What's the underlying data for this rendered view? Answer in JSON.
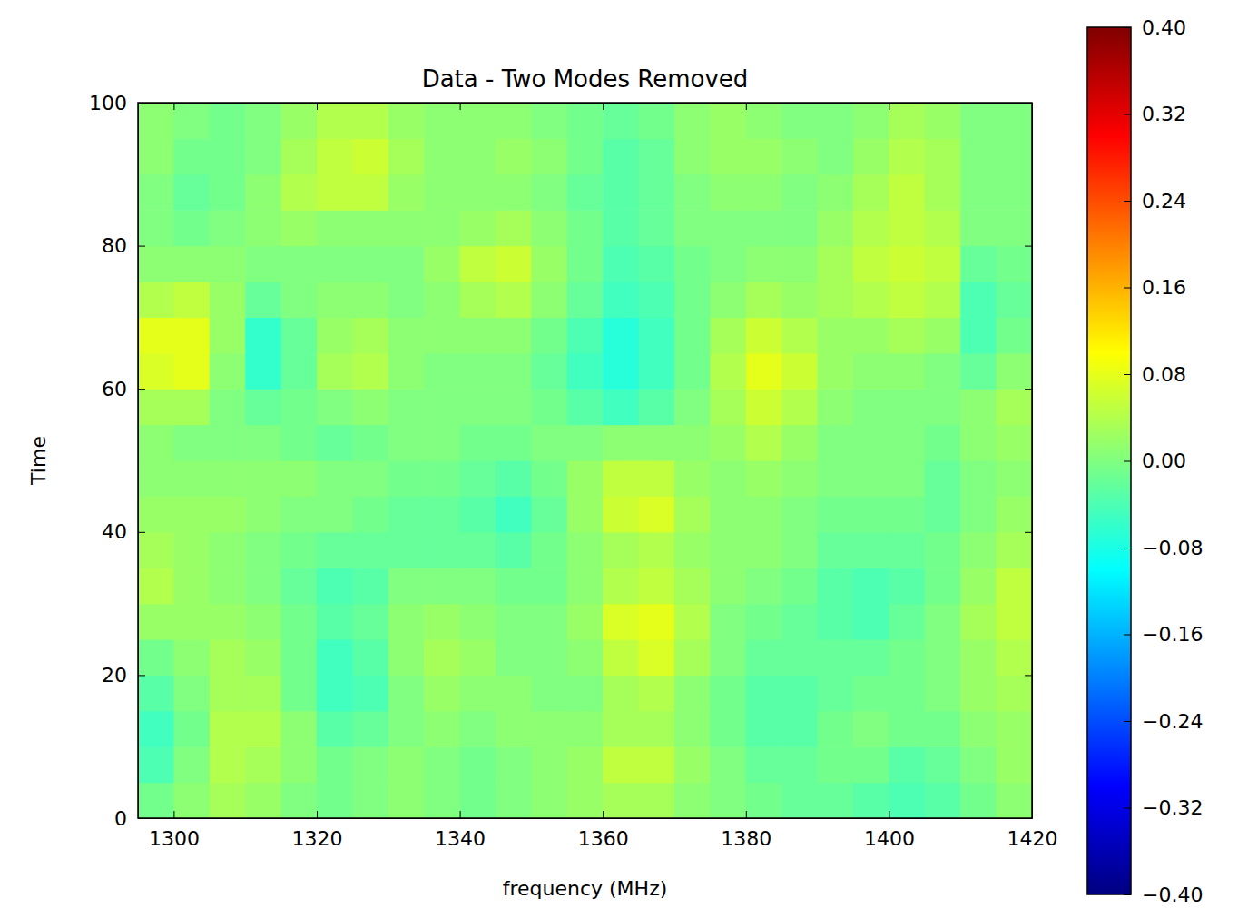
{
  "chart_data": {
    "type": "heatmap",
    "title": "Data - Two Modes Removed",
    "x_label": "frequency (MHz)",
    "y_label": "Time",
    "x": [
      1297.5,
      1302.5,
      1307.5,
      1312.5,
      1317.5,
      1322.5,
      1327.5,
      1332.5,
      1337.5,
      1342.5,
      1347.5,
      1352.5,
      1357.5,
      1362.5,
      1367.5,
      1372.5,
      1377.5,
      1382.5,
      1387.5,
      1392.5,
      1397.5,
      1402.5,
      1407.5,
      1412.5,
      1417.5
    ],
    "y": [
      2.5,
      7.5,
      12.5,
      17.5,
      22.5,
      27.5,
      32.5,
      37.5,
      42.5,
      47.5,
      52.5,
      57.5,
      62.5,
      67.5,
      72.5,
      77.5,
      82.5,
      87.5,
      92.5,
      97.5
    ],
    "z": [
      [
        -0.01,
        0.01,
        0.03,
        0.02,
        0.0,
        -0.01,
        0.0,
        0.01,
        0.0,
        -0.01,
        0.0,
        0.01,
        0.02,
        0.03,
        0.03,
        0.01,
        0.0,
        -0.01,
        -0.02,
        -0.02,
        -0.03,
        -0.04,
        -0.03,
        -0.01,
        0.01
      ],
      [
        -0.04,
        0.0,
        0.04,
        0.03,
        0.01,
        -0.01,
        0.0,
        0.01,
        0.0,
        -0.01,
        0.0,
        0.01,
        0.02,
        0.05,
        0.05,
        0.02,
        0.0,
        -0.02,
        -0.02,
        -0.01,
        -0.01,
        -0.03,
        -0.02,
        0.0,
        0.02
      ],
      [
        -0.05,
        -0.01,
        0.04,
        0.04,
        0.01,
        -0.03,
        -0.02,
        0.0,
        0.01,
        0.0,
        0.01,
        0.01,
        0.01,
        0.03,
        0.03,
        0.01,
        -0.01,
        -0.03,
        -0.03,
        -0.01,
        0.0,
        -0.01,
        -0.01,
        0.01,
        0.02
      ],
      [
        -0.03,
        0.0,
        0.03,
        0.03,
        -0.01,
        -0.05,
        -0.04,
        0.0,
        0.02,
        0.01,
        0.01,
        0.0,
        0.0,
        0.03,
        0.04,
        0.01,
        -0.01,
        -0.03,
        -0.03,
        -0.02,
        -0.01,
        -0.01,
        0.0,
        0.02,
        0.03
      ],
      [
        -0.01,
        0.01,
        0.03,
        0.02,
        -0.01,
        -0.05,
        -0.03,
        0.01,
        0.03,
        0.02,
        0.0,
        0.0,
        0.01,
        0.05,
        0.07,
        0.03,
        0.0,
        -0.02,
        -0.02,
        -0.02,
        -0.02,
        -0.01,
        0.0,
        0.02,
        0.04
      ],
      [
        0.02,
        0.02,
        0.02,
        0.01,
        -0.01,
        -0.03,
        -0.02,
        0.01,
        0.02,
        0.01,
        0.0,
        0.0,
        0.02,
        0.07,
        0.08,
        0.04,
        0.0,
        -0.01,
        -0.02,
        -0.03,
        -0.04,
        -0.02,
        0.0,
        0.03,
        0.05
      ],
      [
        0.04,
        0.02,
        0.01,
        0.0,
        -0.02,
        -0.04,
        -0.03,
        0.0,
        0.0,
        0.0,
        -0.01,
        -0.01,
        0.01,
        0.04,
        0.05,
        0.03,
        0.01,
        0.0,
        -0.01,
        -0.03,
        -0.04,
        -0.03,
        -0.01,
        0.02,
        0.05
      ],
      [
        0.03,
        0.02,
        0.01,
        0.0,
        -0.01,
        -0.02,
        -0.02,
        -0.02,
        -0.02,
        -0.02,
        -0.03,
        -0.01,
        0.01,
        0.03,
        0.04,
        0.02,
        0.01,
        0.01,
        0.0,
        -0.02,
        -0.02,
        -0.02,
        -0.01,
        0.01,
        0.03
      ],
      [
        0.02,
        0.02,
        0.02,
        0.01,
        0.0,
        0.0,
        -0.01,
        -0.02,
        -0.02,
        -0.03,
        -0.05,
        -0.02,
        0.02,
        0.06,
        0.07,
        0.03,
        0.01,
        0.01,
        0.0,
        -0.01,
        -0.01,
        -0.01,
        -0.02,
        0.0,
        0.02
      ],
      [
        0.01,
        0.01,
        0.01,
        0.01,
        0.01,
        0.0,
        0.0,
        -0.01,
        -0.01,
        -0.02,
        -0.03,
        -0.01,
        0.02,
        0.05,
        0.05,
        0.02,
        0.01,
        0.02,
        0.01,
        0.0,
        0.0,
        0.0,
        -0.02,
        0.0,
        0.01
      ],
      [
        0.01,
        0.0,
        0.0,
        0.0,
        -0.01,
        -0.02,
        -0.01,
        0.0,
        0.0,
        -0.01,
        -0.01,
        0.0,
        0.0,
        0.01,
        0.01,
        0.01,
        0.02,
        0.04,
        0.02,
        0.0,
        0.0,
        0.0,
        -0.01,
        0.01,
        0.02
      ],
      [
        0.03,
        0.03,
        0.0,
        -0.02,
        -0.01,
        0.0,
        0.01,
        0.0,
        0.0,
        0.0,
        0.0,
        -0.01,
        -0.03,
        -0.05,
        -0.03,
        0.0,
        0.03,
        0.06,
        0.04,
        0.01,
        0.0,
        0.0,
        0.0,
        0.01,
        0.03
      ],
      [
        0.07,
        0.08,
        0.01,
        -0.06,
        -0.02,
        0.03,
        0.04,
        0.01,
        0.0,
        0.0,
        0.0,
        -0.02,
        -0.05,
        -0.07,
        -0.05,
        -0.01,
        0.04,
        0.08,
        0.06,
        0.02,
        0.01,
        0.01,
        0.0,
        -0.02,
        0.01
      ],
      [
        0.08,
        0.08,
        0.02,
        -0.06,
        -0.02,
        0.02,
        0.03,
        0.01,
        0.01,
        0.01,
        0.01,
        -0.01,
        -0.04,
        -0.07,
        -0.05,
        -0.01,
        0.03,
        0.06,
        0.04,
        0.02,
        0.02,
        0.03,
        0.02,
        -0.04,
        -0.01
      ],
      [
        0.04,
        0.05,
        0.02,
        -0.02,
        0.0,
        0.01,
        0.01,
        0.0,
        0.01,
        0.03,
        0.04,
        0.01,
        -0.02,
        -0.05,
        -0.04,
        -0.01,
        0.01,
        0.03,
        0.02,
        0.03,
        0.04,
        0.05,
        0.04,
        -0.04,
        -0.02
      ],
      [
        0.01,
        0.01,
        0.01,
        0.0,
        0.0,
        0.0,
        0.0,
        0.0,
        0.02,
        0.05,
        0.06,
        0.02,
        -0.01,
        -0.04,
        -0.03,
        -0.01,
        0.0,
        0.01,
        0.01,
        0.03,
        0.05,
        0.06,
        0.05,
        -0.02,
        -0.01
      ],
      [
        0.0,
        -0.01,
        0.0,
        0.01,
        0.02,
        0.01,
        0.01,
        0.01,
        0.01,
        0.02,
        0.03,
        0.01,
        -0.01,
        -0.03,
        -0.02,
        0.0,
        0.0,
        0.0,
        0.0,
        0.02,
        0.04,
        0.05,
        0.04,
        0.0,
        0.0
      ],
      [
        0.0,
        -0.02,
        -0.01,
        0.01,
        0.04,
        0.05,
        0.05,
        0.02,
        0.01,
        0.01,
        0.01,
        0.0,
        -0.02,
        -0.03,
        -0.02,
        0.0,
        0.01,
        0.01,
        0.0,
        0.01,
        0.03,
        0.05,
        0.03,
        0.0,
        0.0
      ],
      [
        0.01,
        -0.01,
        -0.01,
        0.0,
        0.03,
        0.05,
        0.06,
        0.03,
        0.01,
        0.01,
        0.02,
        0.01,
        -0.01,
        -0.03,
        -0.02,
        0.01,
        0.02,
        0.02,
        0.01,
        0.0,
        0.02,
        0.04,
        0.03,
        0.0,
        0.0
      ],
      [
        0.01,
        0.0,
        -0.01,
        0.0,
        0.02,
        0.04,
        0.04,
        0.02,
        0.01,
        0.01,
        0.01,
        0.0,
        -0.01,
        -0.02,
        -0.01,
        0.01,
        0.02,
        0.01,
        0.0,
        0.0,
        0.01,
        0.03,
        0.02,
        0.0,
        0.0
      ]
    ],
    "xlim": [
      1295,
      1420
    ],
    "ylim": [
      0,
      100
    ],
    "xticks": [
      1300,
      1320,
      1340,
      1360,
      1380,
      1400,
      1420
    ],
    "yticks": [
      0,
      20,
      40,
      60,
      80,
      100
    ],
    "colorbar_range": [
      -0.4,
      0.4
    ],
    "colorbar_ticks": [
      {
        "value": -0.4,
        "label": "−0.40"
      },
      {
        "value": -0.32,
        "label": "−0.32"
      },
      {
        "value": -0.24,
        "label": "−0.24"
      },
      {
        "value": -0.16,
        "label": "−0.16"
      },
      {
        "value": -0.08,
        "label": "−0.08"
      },
      {
        "value": 0,
        "label": "0.00"
      },
      {
        "value": 0.08,
        "label": "0.08"
      },
      {
        "value": 0.16,
        "label": "0.16"
      },
      {
        "value": 0.24,
        "label": "0.24"
      },
      {
        "value": 0.32,
        "label": "0.32"
      },
      {
        "value": 0.4,
        "label": "0.40"
      }
    ]
  }
}
